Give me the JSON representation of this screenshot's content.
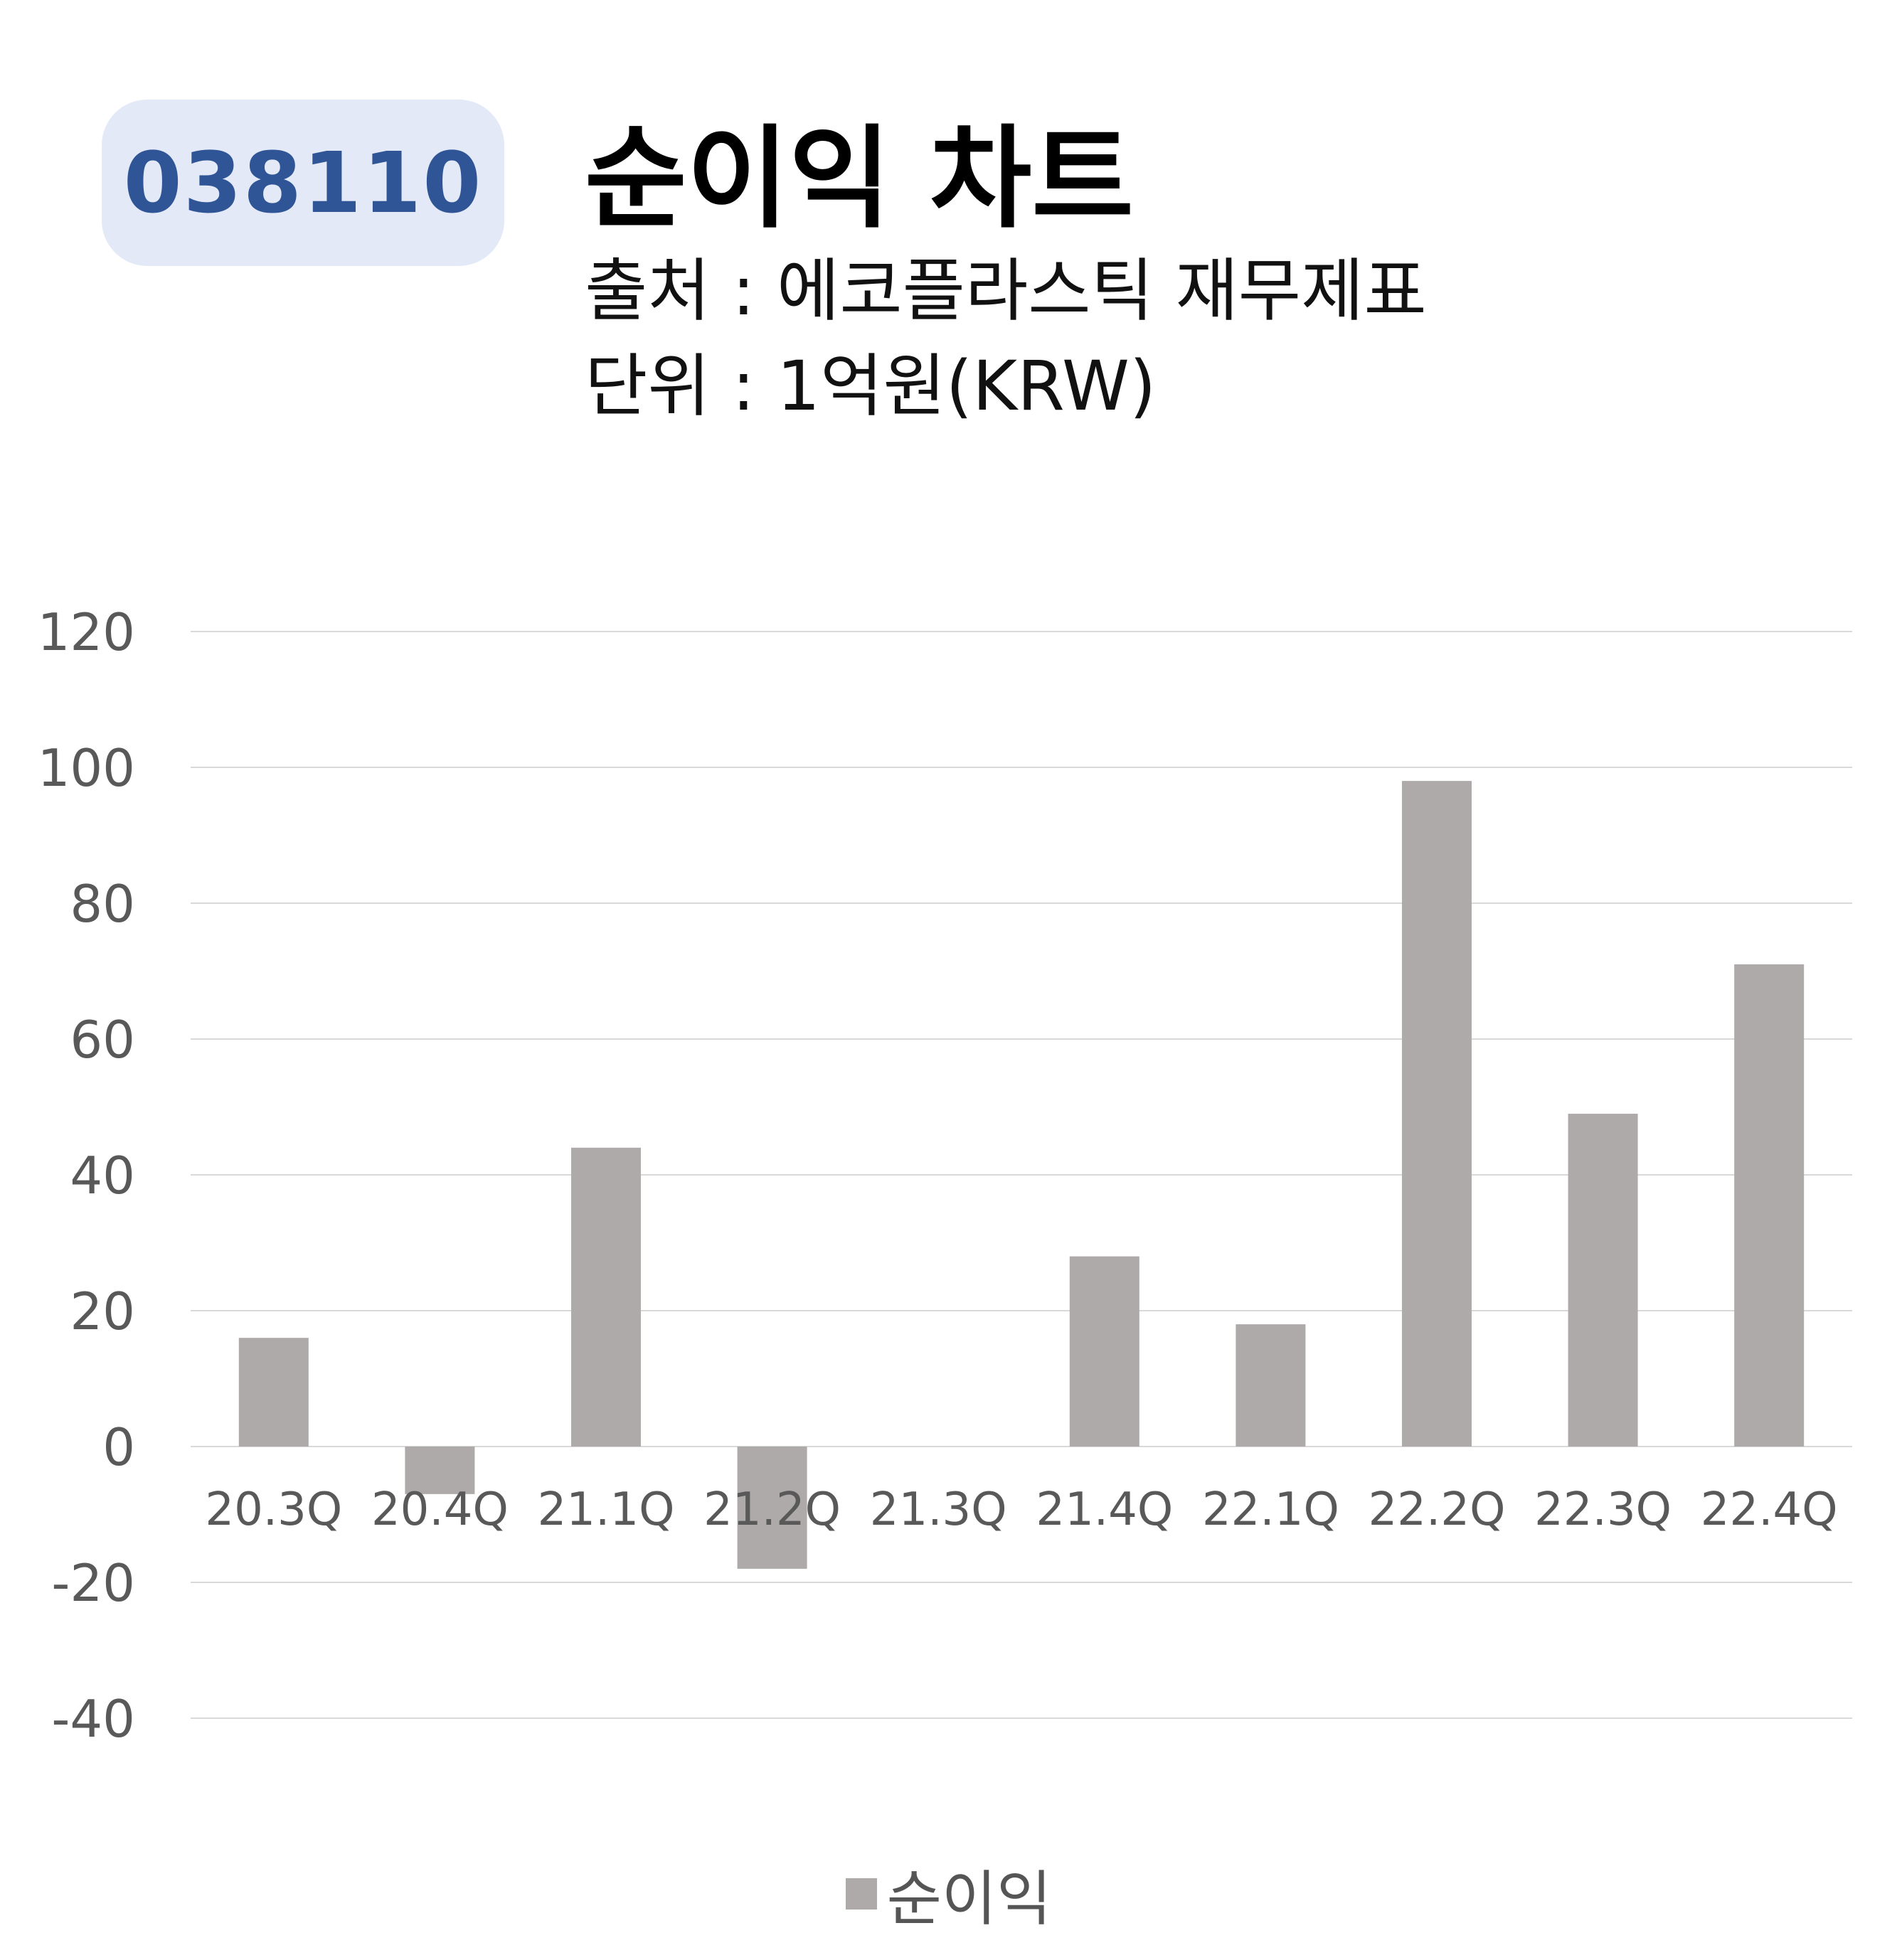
{
  "header": {
    "code": "038110",
    "title": "순이익 차트",
    "source": "출처 : 에코플라스틱 재무제표",
    "unit": "단위 : 1억원(KRW)"
  },
  "colors": {
    "badge_bg": "#e3e9f6",
    "badge_text": "#2f5597",
    "bar": "#aeaaaa",
    "grid": "#d9d9d9",
    "axis_text": "#595959"
  },
  "chart_data": {
    "type": "bar",
    "categories": [
      "20.3Q",
      "20.4Q",
      "21.1Q",
      "21.2Q",
      "21.3Q",
      "21.4Q",
      "22.1Q",
      "22.2Q",
      "22.3Q",
      "22.4Q"
    ],
    "series": [
      {
        "name": "순이익",
        "values": [
          16,
          -7,
          44,
          -18,
          0,
          28,
          18,
          98,
          49,
          71
        ]
      }
    ],
    "ylim": [
      -40,
      120
    ],
    "yticks": [
      -40,
      -20,
      0,
      20,
      40,
      60,
      80,
      100,
      120
    ],
    "grid": true,
    "legend": "bottom"
  }
}
